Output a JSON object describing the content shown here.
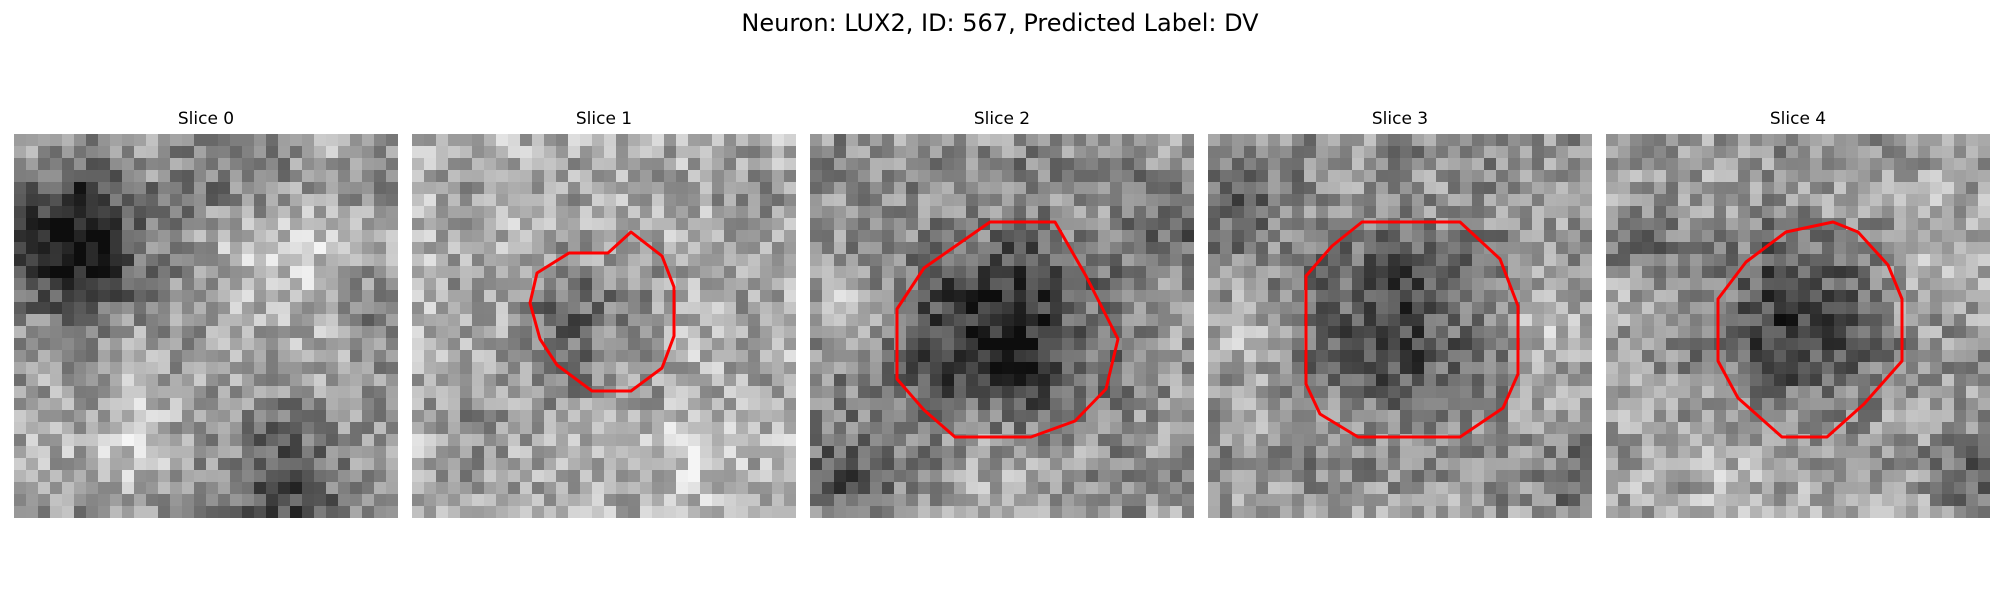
{
  "figure": {
    "title": "Neuron: LUX2, ID: 567, Predicted Label: DV",
    "panels": [
      {
        "title": "Slice 0",
        "has_contour": false,
        "seed": 11
      },
      {
        "title": "Slice 1",
        "has_contour": true,
        "seed": 23
      },
      {
        "title": "Slice 2",
        "has_contour": true,
        "seed": 37
      },
      {
        "title": "Slice 3",
        "has_contour": true,
        "seed": 41
      },
      {
        "title": "Slice 4",
        "has_contour": true,
        "seed": 59
      }
    ],
    "image_style": {
      "colormap": "grayscale",
      "contour_color": "#ff0000"
    }
  }
}
